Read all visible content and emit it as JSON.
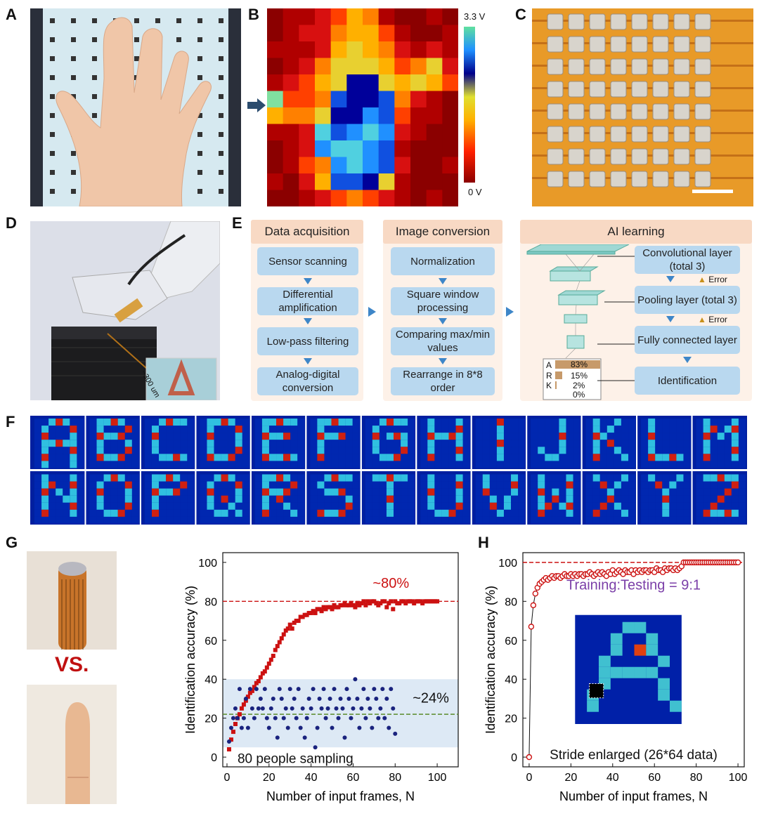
{
  "panels": {
    "A": "A",
    "B": "B",
    "C": "C",
    "D": "D",
    "E": "E",
    "F": "F",
    "G": "G",
    "H": "H"
  },
  "colorbar": {
    "max_label": "3.3 V",
    "min_label": "0 V"
  },
  "inset_d": {
    "scale_label": "~300 um"
  },
  "flowchart": {
    "data_acquisition": {
      "title": "Data acquisition",
      "steps": [
        "Sensor scanning",
        "Differential amplification",
        "Low-pass filtering",
        "Analog-digital conversion"
      ]
    },
    "image_conversion": {
      "title": "Image conversion",
      "steps": [
        "Normalization",
        "Square window processing",
        "Comparing max/min values",
        "Rearrange in 8*8 order"
      ]
    },
    "ai_learning": {
      "title": "AI learning",
      "steps": [
        "Convolutional layer (total 3)",
        "Pooling layer (total 3)",
        "Fully connected layer",
        "Identification"
      ],
      "error_label": "Error",
      "output_rows": [
        {
          "letter": "A",
          "pct": "83%",
          "value": 83
        },
        {
          "letter": "R",
          "pct": "15%",
          "value": 15
        },
        {
          "letter": "K",
          "pct": "2%",
          "value": 2
        },
        {
          "letter": "",
          "pct": "0%",
          "value": 0
        }
      ]
    }
  },
  "letters_row1": [
    "A",
    "B",
    "C",
    "D",
    "E",
    "F",
    "G",
    "H",
    "I",
    "J",
    "K",
    "L",
    "M"
  ],
  "letters_row2": [
    "N",
    "O",
    "P",
    "Q",
    "R",
    "S",
    "T",
    "U",
    "V",
    "W",
    "X",
    "Y",
    "Z"
  ],
  "panel_g": {
    "vs_label": "VS."
  },
  "colors": {
    "robot_series": "#cc1111",
    "human_series": "#1a237e",
    "ref_red": "#cc1111",
    "ref_green": "#5a8a2a",
    "band": "#dde9f5",
    "annotation_purple": "#7b3fa8"
  },
  "chart_data": [
    {
      "type": "scatter",
      "xlabel": "Number of input frames, N",
      "ylabel": "Identification accuracy (%)",
      "xlim": [
        -2,
        110
      ],
      "ylim": [
        -5,
        105
      ],
      "xticks": [
        0,
        20,
        40,
        60,
        80,
        100
      ],
      "yticks": [
        0,
        20,
        40,
        60,
        80,
        100
      ],
      "annotations": {
        "robot": "~80%",
        "human": "~24%",
        "sampling": "80 people sampling"
      },
      "reference_lines": [
        {
          "y": 80,
          "color": "red"
        },
        {
          "y": 22,
          "color": "green"
        }
      ],
      "band": [
        5,
        40
      ],
      "series": [
        {
          "marker": "square",
          "x": [
            1,
            2,
            3,
            4,
            5,
            6,
            7,
            8,
            9,
            10,
            11,
            12,
            13,
            14,
            15,
            16,
            17,
            18,
            19,
            20,
            21,
            22,
            23,
            24,
            25,
            26,
            27,
            28,
            29,
            30,
            31,
            32,
            33,
            34,
            35,
            36,
            37,
            38,
            39,
            40,
            41,
            42,
            43,
            44,
            45,
            46,
            47,
            48,
            49,
            50,
            51,
            52,
            53,
            54,
            55,
            56,
            57,
            58,
            59,
            60,
            61,
            62,
            63,
            64,
            65,
            66,
            67,
            68,
            69,
            70,
            71,
            72,
            73,
            74,
            75,
            76,
            77,
            78,
            79,
            80,
            81,
            82,
            83,
            84,
            85,
            86,
            87,
            88,
            89,
            90,
            91,
            92,
            93,
            94,
            95,
            96,
            97,
            98,
            99,
            100
          ],
          "y": [
            4,
            9,
            13,
            17,
            20,
            22,
            25,
            27,
            29,
            31,
            33,
            34,
            36,
            38,
            39,
            41,
            43,
            44,
            46,
            48,
            50,
            52,
            55,
            57,
            59,
            61,
            63,
            65,
            66,
            68,
            66,
            69,
            70,
            70,
            72,
            72,
            73,
            73,
            74,
            74,
            75,
            74,
            76,
            76,
            75,
            77,
            76,
            77,
            77,
            76,
            78,
            77,
            77,
            78,
            78,
            79,
            78,
            78,
            79,
            78,
            77,
            79,
            78,
            79,
            80,
            78,
            80,
            79,
            80,
            80,
            79,
            78,
            79,
            80,
            80,
            77,
            79,
            80,
            76,
            80,
            79,
            79,
            80,
            80,
            79,
            80,
            80,
            80,
            79,
            80,
            80,
            80,
            79,
            80,
            80,
            80,
            80,
            80,
            80,
            80
          ]
        },
        {
          "marker": "circle",
          "x": [
            1,
            2,
            3,
            4,
            5,
            6,
            7,
            8,
            9,
            10,
            11,
            12,
            13,
            14,
            15,
            16,
            17,
            18,
            19,
            20,
            21,
            22,
            23,
            24,
            25,
            26,
            27,
            28,
            29,
            30,
            31,
            32,
            33,
            34,
            35,
            36,
            37,
            38,
            39,
            40,
            41,
            42,
            43,
            44,
            45,
            46,
            47,
            48,
            49,
            50,
            51,
            52,
            53,
            54,
            55,
            56,
            57,
            58,
            59,
            60,
            61,
            62,
            63,
            64,
            65,
            66,
            67,
            68,
            69,
            70,
            71,
            72,
            73,
            74,
            75,
            76,
            77,
            78,
            79,
            80
          ],
          "y": [
            8,
            15,
            20,
            25,
            20,
            35,
            15,
            20,
            30,
            15,
            35,
            25,
            20,
            35,
            25,
            30,
            25,
            35,
            20,
            15,
            25,
            30,
            20,
            10,
            35,
            30,
            20,
            25,
            15,
            35,
            25,
            30,
            20,
            35,
            15,
            25,
            10,
            20,
            30,
            25,
            35,
            5,
            15,
            30,
            25,
            35,
            20,
            25,
            30,
            15,
            35,
            25,
            20,
            30,
            25,
            10,
            35,
            30,
            20,
            25,
            40,
            30,
            15,
            25,
            35,
            20,
            30,
            25,
            15,
            35,
            30,
            20,
            25,
            35,
            20,
            30,
            15,
            35,
            25,
            12
          ]
        }
      ]
    },
    {
      "type": "line",
      "xlabel": "Number of input frames, N",
      "ylabel": "Identification accuracy (%)",
      "xlim": [
        -3,
        103
      ],
      "ylim": [
        -5,
        105
      ],
      "xticks": [
        0,
        20,
        40,
        60,
        80,
        100
      ],
      "yticks": [
        0,
        20,
        40,
        60,
        80,
        100
      ],
      "annotations": {
        "ratio": "Training:Testing = 9:1",
        "stride": "Stride enlarged (26*64 data)"
      },
      "reference_lines": [
        {
          "y": 100,
          "color": "red"
        }
      ],
      "series": [
        {
          "marker": "circle",
          "x": [
            0,
            1,
            2,
            3,
            4,
            5,
            6,
            7,
            8,
            9,
            10,
            11,
            12,
            13,
            14,
            15,
            16,
            17,
            18,
            19,
            20,
            21,
            22,
            23,
            24,
            25,
            26,
            27,
            28,
            29,
            30,
            31,
            32,
            33,
            34,
            35,
            36,
            37,
            38,
            39,
            40,
            41,
            42,
            43,
            44,
            45,
            46,
            47,
            48,
            49,
            50,
            51,
            52,
            53,
            54,
            55,
            56,
            57,
            58,
            59,
            60,
            61,
            62,
            63,
            64,
            65,
            66,
            67,
            68,
            69,
            70,
            71,
            72,
            73,
            74,
            75,
            76,
            77,
            78,
            79,
            80,
            81,
            82,
            83,
            84,
            85,
            86,
            87,
            88,
            89,
            90,
            91,
            92,
            93,
            94,
            95,
            96,
            97,
            98,
            99,
            100
          ],
          "y": [
            0,
            67,
            78,
            84,
            87,
            89,
            90,
            91,
            92,
            91,
            92,
            93,
            92,
            93,
            93,
            92,
            93,
            94,
            93,
            93,
            94,
            93,
            94,
            93,
            94,
            94,
            93,
            94,
            94,
            95,
            94,
            93,
            94,
            95,
            94,
            95,
            94,
            93,
            95,
            94,
            96,
            94,
            95,
            96,
            95,
            94,
            96,
            95,
            95,
            96,
            94,
            96,
            95,
            96,
            95,
            96,
            96,
            95,
            96,
            96,
            95,
            97,
            96,
            96,
            95,
            97,
            96,
            97,
            97,
            96,
            97,
            96,
            97,
            98,
            100,
            100,
            100,
            100,
            100,
            100,
            100,
            100,
            100,
            100,
            100,
            100,
            100,
            100,
            100,
            100,
            100,
            100,
            100,
            100,
            100,
            100,
            100,
            100,
            100,
            100,
            100
          ]
        }
      ]
    }
  ]
}
